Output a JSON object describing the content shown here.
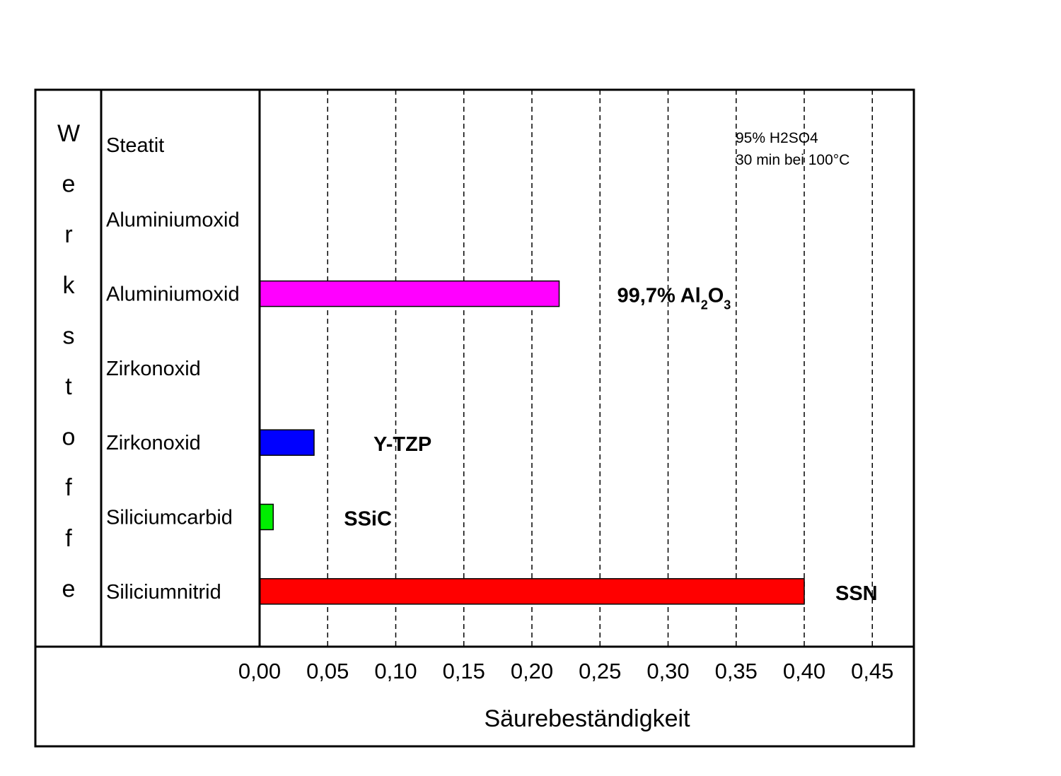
{
  "chart_data": {
    "type": "bar",
    "orientation": "horizontal",
    "title": "",
    "side_label": "Werkstoffe",
    "xlabel": "Säurebeständigkeit",
    "xlim": [
      0,
      0.475
    ],
    "x_ticks": [
      "0,00",
      "0,05",
      "0,10",
      "0,15",
      "0,20",
      "0,25",
      "0,30",
      "0,35",
      "0,40",
      "0,45"
    ],
    "x_tick_values": [
      0,
      0.05,
      0.1,
      0.15,
      0.2,
      0.25,
      0.3,
      0.35,
      0.4,
      0.45
    ],
    "grid": "vertical dashed",
    "note_lines": [
      "95% H2SO4",
      "30 min bei 100°C"
    ],
    "categories": [
      "Steatit",
      "Aluminiumoxid",
      "Aluminiumoxid",
      "Zirkonoxid",
      "Zirkonoxid",
      "Siliciumcarbid",
      "Siliciumnitrid"
    ],
    "bars": [
      {
        "value": null,
        "color": "",
        "label": "",
        "label_sub": []
      },
      {
        "value": null,
        "color": "",
        "label": "",
        "label_sub": []
      },
      {
        "value": 0.22,
        "color": "#ff00ff",
        "label": "99,7% Al2O3",
        "label_parts": [
          {
            "text": "99,7% Al",
            "sub": false
          },
          {
            "text": "2",
            "sub": true
          },
          {
            "text": "O",
            "sub": false
          },
          {
            "text": "3",
            "sub": true
          }
        ]
      },
      {
        "value": null,
        "color": "",
        "label": ""
      },
      {
        "value": 0.04,
        "color": "#0000ff",
        "label": "Y-TZP"
      },
      {
        "value": 0.01,
        "color": "#00ee00",
        "label": "SSiC"
      },
      {
        "value": 0.4,
        "color": "#ff0000",
        "label": "SSN"
      }
    ]
  }
}
